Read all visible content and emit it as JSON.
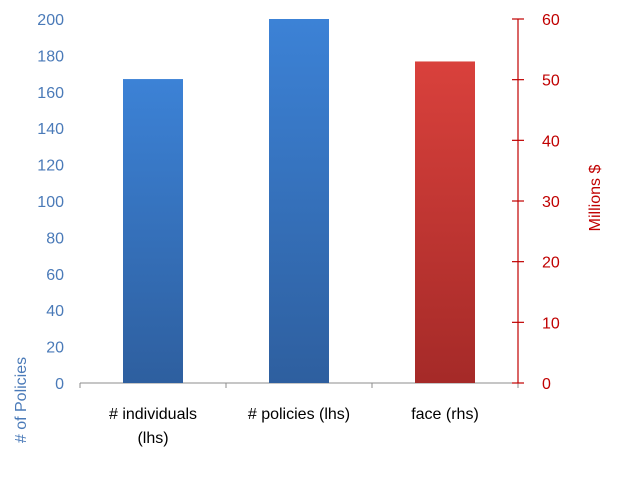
{
  "chart_data": {
    "type": "bar",
    "categories": [
      [
        "# individuals",
        "(lhs)"
      ],
      [
        "# policies (lhs)"
      ],
      [
        "face (rhs)"
      ]
    ],
    "series": [
      {
        "values": [
          167,
          200,
          null
        ],
        "axis": "left",
        "color": "#3a78c9"
      },
      {
        "values": [
          null,
          null,
          53
        ],
        "axis": "right",
        "color": "#c93a3a"
      }
    ],
    "left_axis": {
      "label": "# of Policies",
      "ylim": [
        0,
        200
      ],
      "ticks": [
        "0",
        "20",
        "40",
        "60",
        "80",
        "100",
        "120",
        "140",
        "160",
        "180",
        "200"
      ],
      "color": "#4a7ab8"
    },
    "right_axis": {
      "label": "Millions $",
      "ylim": [
        0,
        60
      ],
      "ticks": [
        "0",
        "10",
        "20",
        "30",
        "40",
        "50",
        "60"
      ],
      "color": "#c00000"
    },
    "grid": false,
    "legend": "none"
  }
}
